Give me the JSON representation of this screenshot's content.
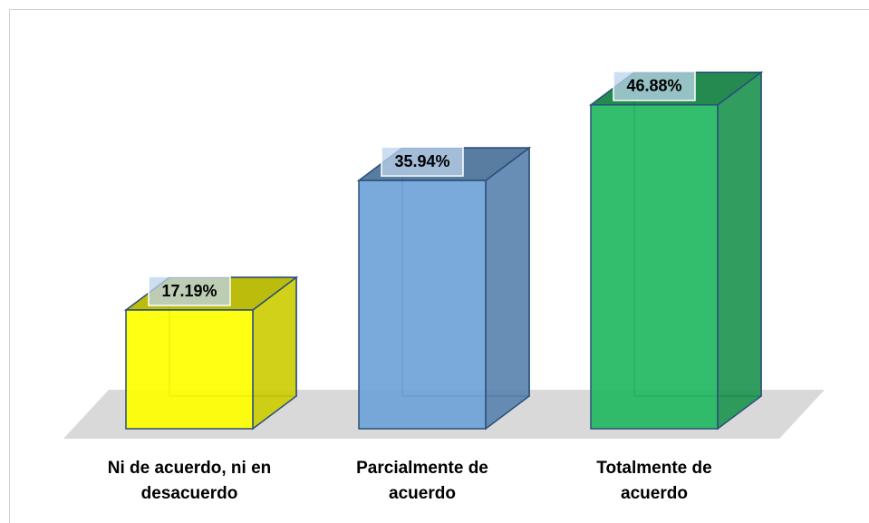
{
  "chart_data": {
    "type": "bar3d",
    "categories": [
      "Ni de acuerdo, ni en desacuerdo",
      "Parcialmente de acuerdo",
      "Totalmente de acuerdo"
    ],
    "values": [
      17.19,
      35.94,
      46.88
    ],
    "value_labels": [
      "17.19%",
      "35.94%",
      "46.88%"
    ],
    "colors": [
      "#ffff00",
      "#6fa3d8",
      "#22b862"
    ]
  }
}
